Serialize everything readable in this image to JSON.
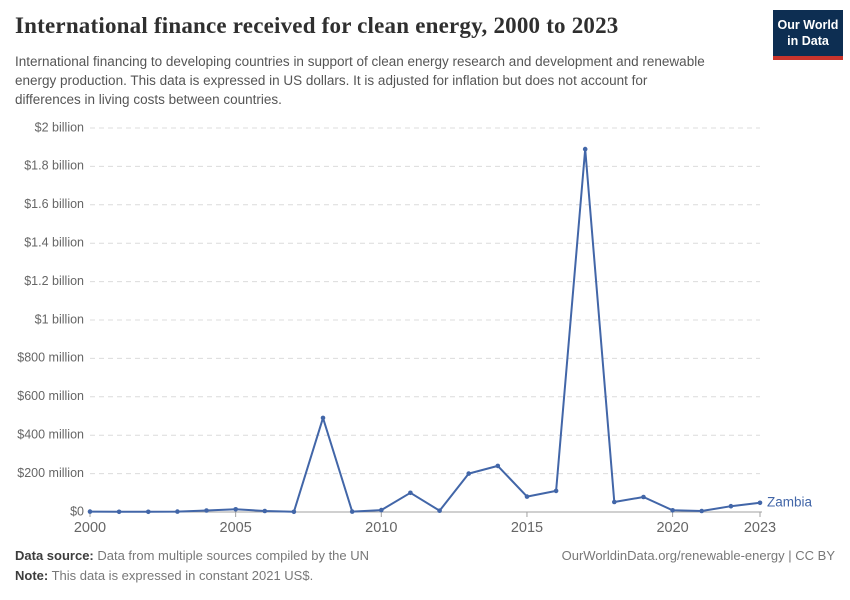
{
  "header": {
    "title": "International finance received for clean energy, 2000 to 2023",
    "subtitle": "International financing to developing countries in support of clean energy research and development and renewable energy production. This data is expressed in US dollars. It is adjusted for inflation but does not account for differences in living costs between countries.",
    "logo": {
      "line1": "Our World",
      "line2": "in Data",
      "bg_color": "#0d2e52",
      "stripe_color": "#c9342c"
    }
  },
  "chart_data": {
    "type": "line",
    "title": "International finance received for clean energy, 2000 to 2023",
    "entity_label": "Zambia",
    "unit": "US$ million (constant 2021 US$)",
    "x": [
      2000,
      2001,
      2002,
      2003,
      2004,
      2005,
      2006,
      2007,
      2008,
      2009,
      2010,
      2011,
      2012,
      2013,
      2014,
      2015,
      2016,
      2017,
      2018,
      2019,
      2020,
      2021,
      2022,
      2023
    ],
    "series": [
      {
        "name": "Zambia",
        "color": "#4266a8",
        "values": [
          2,
          1,
          1,
          2,
          8,
          14,
          5,
          1,
          490,
          2,
          10,
          100,
          7,
          200,
          240,
          80,
          110,
          1890,
          52,
          78,
          9,
          5,
          30,
          48
        ]
      }
    ],
    "ylim_million": [
      0,
      2000
    ],
    "yticks": [
      {
        "value": 0,
        "label": "$0"
      },
      {
        "value": 200,
        "label": "$200 million"
      },
      {
        "value": 400,
        "label": "$400 million"
      },
      {
        "value": 600,
        "label": "$600 million"
      },
      {
        "value": 800,
        "label": "$800 million"
      },
      {
        "value": 1000,
        "label": "$1 billion"
      },
      {
        "value": 1200,
        "label": "$1.2 billion"
      },
      {
        "value": 1400,
        "label": "$1.4 billion"
      },
      {
        "value": 1600,
        "label": "$1.6 billion"
      },
      {
        "value": 1800,
        "label": "$1.8 billion"
      },
      {
        "value": 2000,
        "label": "$2 billion"
      }
    ],
    "xticks": [
      2000,
      2005,
      2010,
      2015,
      2020,
      2023
    ],
    "grid": "horizontal-dashed",
    "grid_color": "#dcdcdc",
    "axis_color": "#a1a1a1",
    "tick_label_color": "#666666",
    "legend_position": "end-of-line"
  },
  "footer": {
    "source_label": "Data source:",
    "source_text": " Data from multiple sources compiled by the UN",
    "note_label": "Note:",
    "note_text": " This data is expressed in constant 2021 US$.",
    "right_text": "OurWorldinData.org/renewable-energy | CC BY"
  }
}
